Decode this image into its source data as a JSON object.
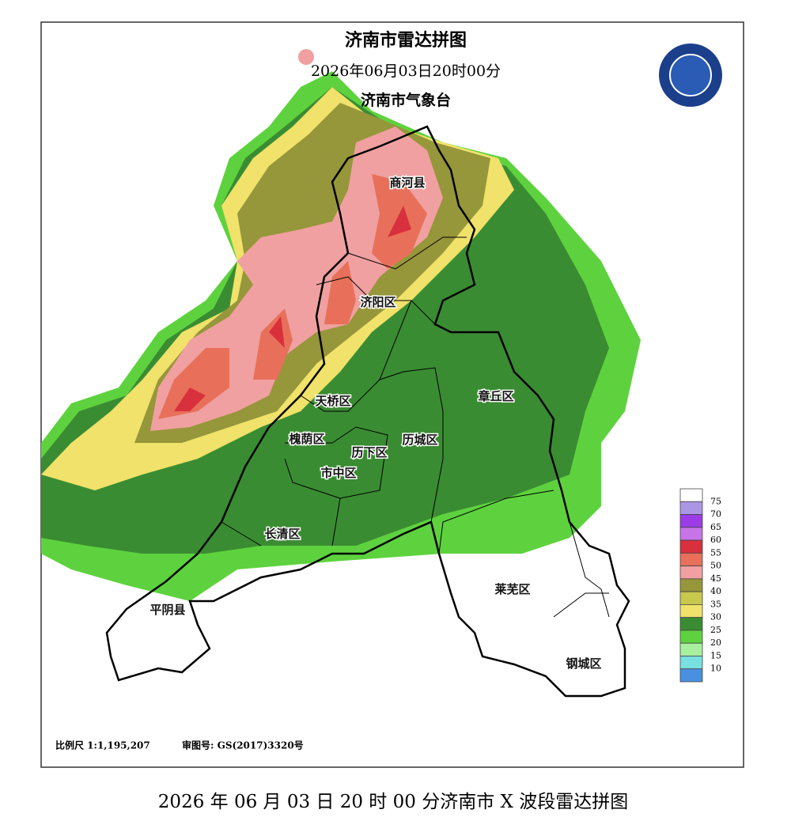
{
  "map": {
    "title": "济南市雷达拼图",
    "subtitle": "2026年06月03日20时00分",
    "organization": "济南市气象台",
    "districts": [
      "商河县",
      "济阳区",
      "天桥区",
      "章丘区",
      "槐荫区",
      "历下区",
      "历城区",
      "市中区",
      "长清区",
      "莱芜区",
      "平阴县",
      "钢城区"
    ],
    "legend": {
      "colors": [
        "#ffffff",
        "#ab96e6",
        "#9b3ce8",
        "#c774e8",
        "#d8303c",
        "#e8705a",
        "#f0a0a0",
        "#96963a",
        "#c8c84c",
        "#f0e26a",
        "#3a8c32",
        "#5ed23e",
        "#a8f0a0",
        "#78e0e0",
        "#4a90e0"
      ],
      "levels": [
        75,
        70,
        65,
        60,
        55,
        50,
        45,
        40,
        35,
        30,
        25,
        20,
        15,
        10
      ]
    },
    "scale": "比例尺 1:1,195,207",
    "review_number": "审图号: GS(2017)3320号"
  },
  "caption": "2026 年 06 月 03 日 20 时 00 分济南市 X 波段雷达拼图"
}
